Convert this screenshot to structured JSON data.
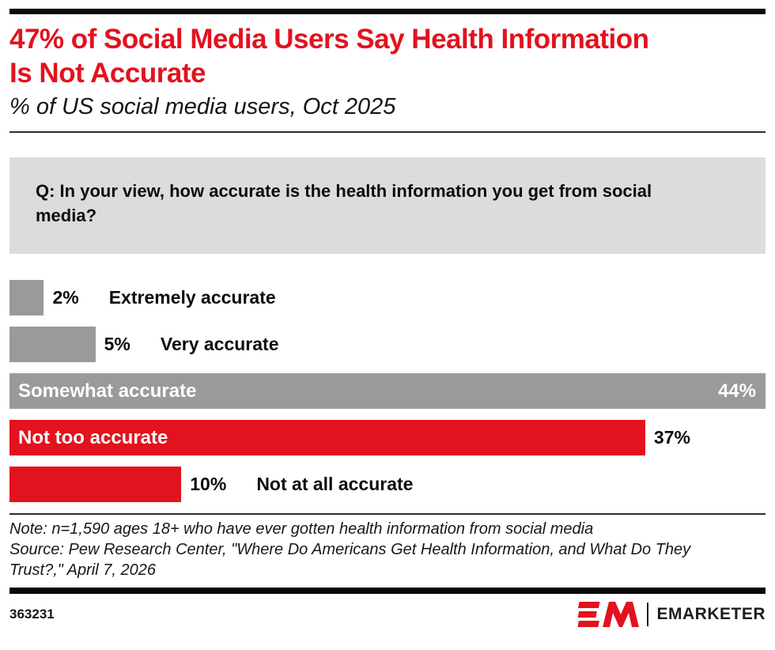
{
  "header": {
    "title_line1": "47% of Social Media Users Say Health Information",
    "title_line2": "Is Not Accurate",
    "subtitle": "% of US social media users, Oct 2025"
  },
  "question": "Q: In your view, how accurate is the health information you get from social media?",
  "chart_data": {
    "type": "bar",
    "orientation": "horizontal",
    "title": "47% of Social Media Users Say Health Information Is Not Accurate",
    "subtitle": "% of US social media users, Oct 2025",
    "unit": "%",
    "xlim": [
      0,
      44
    ],
    "grid": false,
    "legend": "none",
    "categories": [
      "Extremely accurate",
      "Very accurate",
      "Somewhat accurate",
      "Not too accurate",
      "Not at all accurate"
    ],
    "values": [
      2,
      5,
      44,
      37,
      10
    ],
    "bars": [
      {
        "category": "Extremely accurate",
        "value": 2,
        "display": "2%",
        "color": "gray",
        "category_placement": "outside",
        "value_placement": "outside"
      },
      {
        "category": "Very accurate",
        "value": 5,
        "display": "5%",
        "color": "gray",
        "category_placement": "outside",
        "value_placement": "outside"
      },
      {
        "category": "Somewhat accurate",
        "value": 44,
        "display": "44%",
        "color": "gray",
        "category_placement": "inside",
        "value_placement": "inside"
      },
      {
        "category": "Not too accurate",
        "value": 37,
        "display": "37%",
        "color": "red",
        "category_placement": "inside",
        "value_placement": "outside"
      },
      {
        "category": "Not at all accurate",
        "value": 10,
        "display": "10%",
        "color": "red",
        "category_placement": "outside",
        "value_placement": "outside"
      }
    ]
  },
  "footnote": {
    "note": "Note: n=1,590 ages 18+ who have ever gotten health information from social media",
    "source": "Source: Pew Research Center, \"Where Do Americans Get Health Information, and What Do They Trust?,\" April 7, 2026"
  },
  "footer": {
    "chart_id": "363231",
    "brand": "EMARKETER"
  },
  "colors": {
    "red": "#e2121e",
    "bar_gray": "#9a9a9a",
    "question_bg": "#dcdcdc",
    "accent_bar": "#0a0a0a",
    "title_red": "#e2121e"
  }
}
